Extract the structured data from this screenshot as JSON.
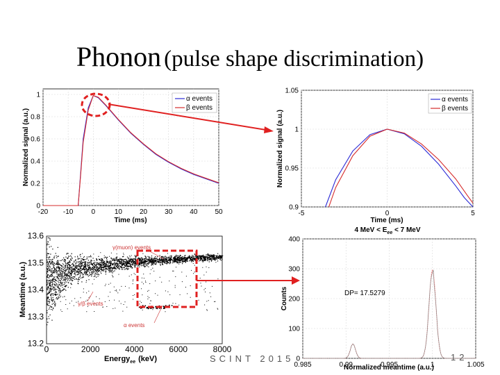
{
  "slide": {
    "title_main": "Phonon",
    "title_sub": "(pulse shape discrimination)",
    "footer_text": "SCINT 2015",
    "page_number": "12"
  },
  "colors": {
    "alpha": "#2b2bd6",
    "beta": "#d62b2b",
    "highlight": "#e02020",
    "grid": "#d8d8d8"
  },
  "chart_data": [
    {
      "id": "pulse_full",
      "type": "line",
      "xlabel": "Time (ms)",
      "ylabel": "Normalized signal (a.u.)",
      "xlim": [
        -20,
        50
      ],
      "ylim": [
        0,
        1.05
      ],
      "xticks": [
        "-20",
        "-10",
        "0",
        "10",
        "20",
        "30",
        "40",
        "50"
      ],
      "yticks": [
        "0",
        "0.2",
        "0.4",
        "0.6",
        "0.8",
        "1"
      ],
      "series": [
        {
          "name": "α events",
          "x": [
            -20,
            -6,
            -5,
            -4,
            -2,
            0,
            2,
            5,
            10,
            15,
            20,
            25,
            30,
            35,
            40,
            45,
            50
          ],
          "values": [
            0,
            0,
            0.3,
            0.6,
            0.88,
            0.99,
            0.97,
            0.9,
            0.77,
            0.65,
            0.55,
            0.46,
            0.39,
            0.33,
            0.28,
            0.24,
            0.2
          ]
        },
        {
          "name": "β events",
          "x": [
            -20,
            -6,
            -5,
            -4,
            -2,
            0,
            2,
            5,
            10,
            15,
            20,
            25,
            30,
            35,
            40,
            45,
            50
          ],
          "values": [
            0,
            0,
            0.28,
            0.57,
            0.86,
            0.99,
            0.975,
            0.905,
            0.775,
            0.655,
            0.555,
            0.465,
            0.395,
            0.335,
            0.285,
            0.245,
            0.205
          ]
        }
      ],
      "legend": "top-right"
    },
    {
      "id": "pulse_zoom",
      "type": "line",
      "xlabel": "Time (ms)",
      "ylabel": "Normalized signal (a.u.)",
      "xlim": [
        -5,
        5
      ],
      "ylim": [
        0.9,
        1.05
      ],
      "xticks": [
        "-5",
        "0",
        "5"
      ],
      "yticks": [
        "0.9",
        "0.95",
        "1",
        "1.05"
      ],
      "series": [
        {
          "name": "α events",
          "x": [
            -3.6,
            -3,
            -2,
            -1,
            0,
            1,
            2,
            3,
            4,
            4.5,
            5
          ],
          "values": [
            0.9,
            0.935,
            0.972,
            0.993,
            1.0,
            0.994,
            0.978,
            0.955,
            0.927,
            0.912,
            0.9
          ]
        },
        {
          "name": "β events",
          "x": [
            -3.4,
            -3,
            -2,
            -1,
            0,
            1,
            2,
            3,
            4,
            4.7,
            5
          ],
          "values": [
            0.9,
            0.925,
            0.966,
            0.991,
            1.0,
            0.995,
            0.981,
            0.961,
            0.936,
            0.914,
            0.905
          ]
        }
      ],
      "legend": "top-right"
    },
    {
      "id": "meantime_scatter",
      "type": "scatter",
      "xlabel": "Energy",
      "xlabel_sub": "ee",
      "xlabel_unit": "(keV)",
      "ylabel": "Meantime (a.u.)",
      "xlim": [
        0,
        8000
      ],
      "ylim": [
        13.2,
        13.6
      ],
      "xticks": [
        "0",
        "2000",
        "4000",
        "6000",
        "8000"
      ],
      "yticks": [
        "13.2",
        "13.3",
        "13.4",
        "13.5",
        "13.6"
      ],
      "band": {
        "x": [
          0,
          500,
          1000,
          2000,
          3000,
          4000,
          5000,
          6000,
          7000,
          8000
        ],
        "center": [
          13.43,
          13.45,
          13.47,
          13.485,
          13.495,
          13.505,
          13.51,
          13.515,
          13.52,
          13.525
        ],
        "width": [
          0.12,
          0.07,
          0.045,
          0.028,
          0.02,
          0.015,
          0.013,
          0.011,
          0.01,
          0.009
        ]
      },
      "alpha_cluster": {
        "x": [
          4300,
          4600,
          5200,
          5600
        ],
        "y": [
          13.345,
          13.345,
          13.35,
          13.35
        ]
      },
      "annotations": [
        "γ(muon) events",
        "γ/β events",
        "α events"
      ],
      "energy_selection": "4 MeV < E_ee < 7 MeV"
    },
    {
      "id": "meantime_hist",
      "type": "line",
      "title": "4 MeV < E",
      "title_sub": "ee",
      "title_tail": " < 7 MeV",
      "xlabel": "Normalized meantime (a.u.)",
      "ylabel": "Counts",
      "xlim": [
        0.985,
        1.005
      ],
      "ylim": [
        0,
        400
      ],
      "xticks": [
        "0.985",
        "0.99",
        "0.995",
        "1",
        "1.005"
      ],
      "yticks": [
        "0",
        "100",
        "200",
        "300",
        "400"
      ],
      "annotation": "DP= 17.5279",
      "peaks": [
        {
          "label": "alpha peak",
          "center": 0.9908,
          "height": 48,
          "sigma": 0.0003
        },
        {
          "label": "beta peak",
          "center": 1.0,
          "height": 295,
          "sigma": 0.0004
        }
      ]
    }
  ]
}
